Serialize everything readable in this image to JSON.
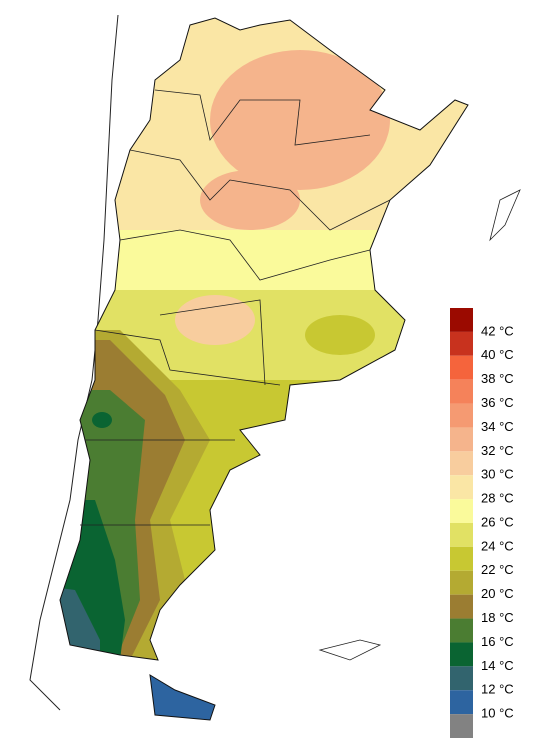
{
  "legend": {
    "labels": [
      "42 °C",
      "40 °C",
      "38 °C",
      "36 °C",
      "34 °C",
      "32 °C",
      "30 °C",
      "28 °C",
      "26 °C",
      "24 °C",
      "22 °C",
      "20 °C",
      "18 °C",
      "16 °C",
      "14 °C",
      "12 °C",
      "10 °C"
    ],
    "colors": [
      "#9b0a00",
      "#c8321e",
      "#f5643c",
      "#f5825a",
      "#f59a72",
      "#f5b48c",
      "#f8cd9e",
      "#fae6a5",
      "#fafa9b",
      "#e1e164",
      "#c8c832",
      "#b4aa32",
      "#9b7d32",
      "#4b7d32",
      "#0a6432",
      "#32646e",
      "#2d64a0",
      "#828282"
    ]
  }
}
